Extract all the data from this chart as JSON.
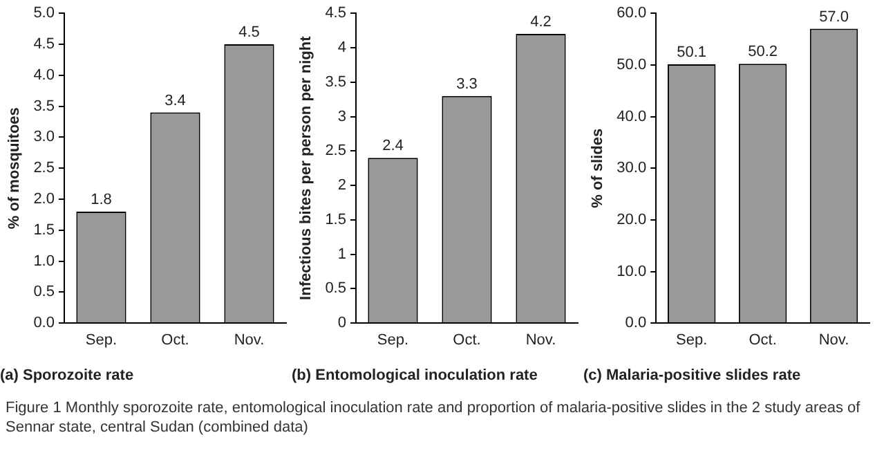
{
  "chart_data": [
    {
      "type": "bar",
      "title": "(a) Sporozoite rate",
      "ylabel": "% of mosquitoes",
      "categories": [
        "Sep.",
        "Oct.",
        "Nov."
      ],
      "values": [
        1.8,
        3.4,
        4.5
      ],
      "color": "#999999",
      "data_labels": true,
      "ylim": [
        0,
        5
      ],
      "yticks": [
        {
          "value": 0,
          "label": "0.0"
        },
        {
          "value": 0.5,
          "label": "0.5"
        },
        {
          "value": 1,
          "label": "1.0"
        },
        {
          "value": 1.5,
          "label": "1.5"
        },
        {
          "value": 2,
          "label": "2.0"
        },
        {
          "value": 2.5,
          "label": "2.5"
        },
        {
          "value": 3,
          "label": "3.0"
        },
        {
          "value": 3.5,
          "label": "3.5"
        },
        {
          "value": 4,
          "label": "4.0"
        },
        {
          "value": 4.5,
          "label": "4.5"
        },
        {
          "value": 5,
          "label": "5.0"
        }
      ],
      "grid": false,
      "legend": false
    },
    {
      "type": "bar",
      "title": "(b) Entomological inoculation rate",
      "ylabel": "Infectious bites per person per night",
      "categories": [
        "Sep.",
        "Oct.",
        "Nov."
      ],
      "values": [
        2.4,
        3.3,
        4.2
      ],
      "color": "#999999",
      "data_labels": true,
      "ylim": [
        0,
        4.5
      ],
      "yticks": [
        0,
        0.5,
        1,
        1.5,
        2,
        2.5,
        3,
        3.5,
        4,
        4.5
      ],
      "grid": false,
      "legend": false
    },
    {
      "type": "bar",
      "title": "(c) Malaria-positive slides rate",
      "ylabel": "% of slides",
      "categories": [
        "Sep.",
        "Oct.",
        "Nov."
      ],
      "values": [
        50.1,
        50.2,
        57.0
      ],
      "value_labels": [
        "50.1",
        "50.2",
        "57.0"
      ],
      "color": "#999999",
      "ylim": [
        0,
        60
      ],
      "yticks": [
        {
          "value": 0,
          "label": "0.0"
        },
        {
          "value": 10,
          "label": "10.0"
        },
        {
          "value": 20,
          "label": "20.0"
        },
        {
          "value": 30,
          "label": "30.0"
        },
        {
          "value": 40,
          "label": "40.0"
        },
        {
          "value": 50,
          "label": "50.0"
        },
        {
          "value": 60,
          "label": "60.0"
        }
      ],
      "grid": false,
      "legend": false,
      "annotations": [
        "Figure 1 Monthly sporozoite rate, entomological inoculation rate and proportion of malaria-positive slides in the 2 study areas of Sennar state, central Sudan (combined data)"
      ]
    }
  ]
}
